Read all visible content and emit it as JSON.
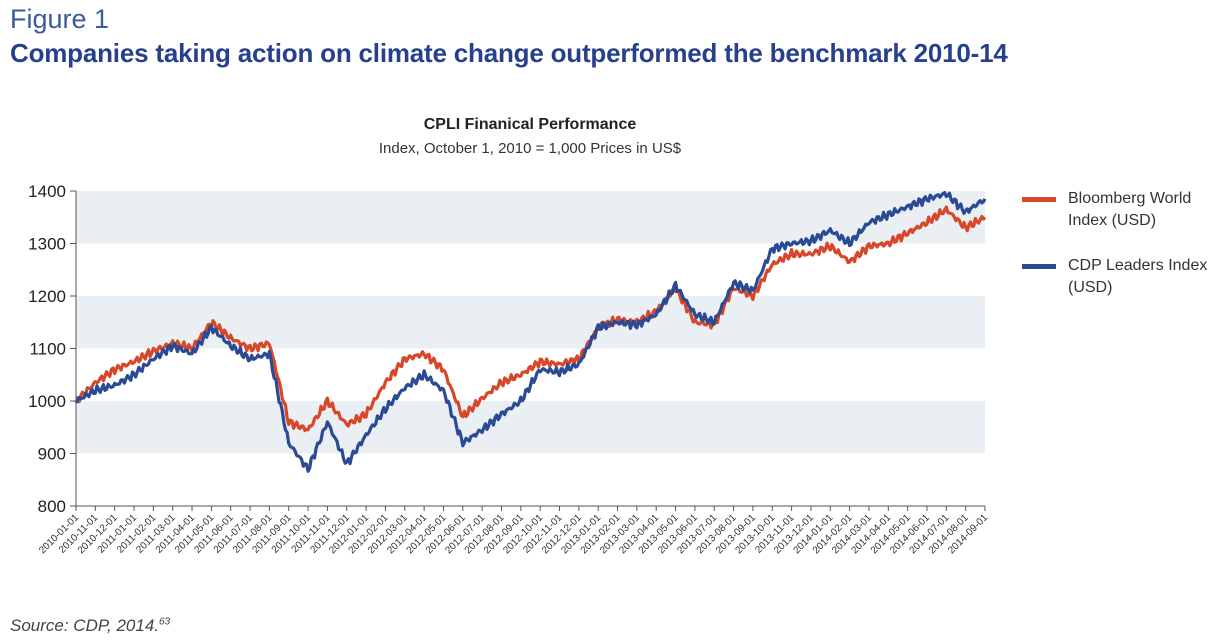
{
  "figure_label": "Figure 1",
  "headline": "Companies taking action on climate change outperformed the benchmark 2010-14",
  "source": "Source: CDP, 2014.",
  "source_sup": "63",
  "chart_data": {
    "type": "line",
    "title": "CPLI Finanical Performance",
    "subtitle": "Index, October 1, 2010 = 1,000 Prices in US$",
    "xlabel": "",
    "ylabel": "",
    "ylim": [
      800,
      1400
    ],
    "yticks": [
      800,
      900,
      1000,
      1100,
      1200,
      1300,
      1400
    ],
    "x_tick_labels": [
      "2010-01-01",
      "2010-11-01",
      "2010-12-01",
      "2011-01-01",
      "2011-02-01",
      "2011-03-01",
      "2011-04-01",
      "2011-05-01",
      "2011-06-01",
      "2011-07-01",
      "2011-08-01",
      "2011-09-01",
      "2011-10-01",
      "2011-11-01",
      "2011-12-01",
      "2012-01-01",
      "2012-02-01",
      "2012-03-01",
      "2012-04-01",
      "2012-05-01",
      "2012-06-01",
      "2012-07-01",
      "2012-08-01",
      "2012-09-01",
      "2012-10-01",
      "2012-11-01",
      "2012-12-01",
      "2013-01-01",
      "2013-02-01",
      "2013-03-01",
      "2013-04-01",
      "2013-05-01",
      "2013-06-01",
      "2013-07-01",
      "2013-08-01",
      "2013-09-01",
      "2013-10-01",
      "2013-11-01",
      "2013-12-01",
      "2014-01-01",
      "2014-02-01",
      "2014-03-01",
      "2014-04-01",
      "2014-05-01",
      "2014-06-01",
      "2014-07-01",
      "2014-08-01",
      "2014-09-01"
    ],
    "grid_bands": true,
    "legend_position": "right",
    "series": [
      {
        "name": "Bloomberg World Index (USD)",
        "color": "#d9472b",
        "values": [
          1000,
          1035,
          1060,
          1075,
          1095,
          1110,
          1100,
          1150,
          1120,
          1100,
          1110,
          960,
          945,
          1000,
          955,
          975,
          1035,
          1080,
          1090,
          1060,
          970,
          1005,
          1035,
          1050,
          1075,
          1070,
          1080,
          1140,
          1155,
          1150,
          1170,
          1215,
          1150,
          1145,
          1215,
          1200,
          1260,
          1280,
          1280,
          1295,
          1265,
          1295,
          1300,
          1320,
          1340,
          1365,
          1330,
          1350
        ]
      },
      {
        "name": "CDP Leaders Index (USD)",
        "color": "#2b4a94",
        "values": [
          1000,
          1020,
          1030,
          1050,
          1080,
          1105,
          1090,
          1140,
          1105,
          1080,
          1090,
          920,
          870,
          960,
          880,
          935,
          985,
          1025,
          1050,
          1020,
          920,
          945,
          975,
          1000,
          1060,
          1055,
          1070,
          1140,
          1150,
          1145,
          1165,
          1220,
          1165,
          1150,
          1225,
          1210,
          1290,
          1300,
          1305,
          1325,
          1300,
          1340,
          1355,
          1370,
          1385,
          1395,
          1360,
          1385
        ]
      }
    ]
  }
}
